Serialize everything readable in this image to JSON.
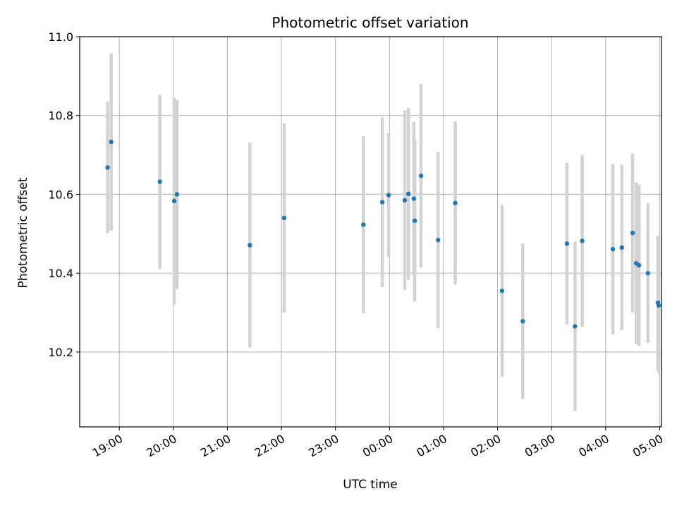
{
  "chart_data": {
    "type": "scatter",
    "title": "Photometric offset variation",
    "xlabel": "UTC time",
    "ylabel": "Photometric offset",
    "x_type": "time",
    "xlim": [
      "18:16",
      "05:02"
    ],
    "ylim": [
      10.01,
      11.0
    ],
    "grid": true,
    "xticks": [
      "19:00",
      "20:00",
      "21:00",
      "22:00",
      "23:00",
      "00:00",
      "01:00",
      "02:00",
      "03:00",
      "04:00",
      "05:00"
    ],
    "yticks": [
      10.2,
      10.4,
      10.6,
      10.8,
      11.0
    ],
    "ytick_labels": [
      "10.2",
      "10.4",
      "10.6",
      "10.8",
      "11.0"
    ],
    "marker_color": "#1f77b4",
    "errorbar_color": "#d3d3d3",
    "points": [
      {
        "x": "18:47",
        "y": 10.668,
        "err": 0.167
      },
      {
        "x": "18:51",
        "y": 10.733,
        "err": 0.225
      },
      {
        "x": "19:45",
        "y": 10.632,
        "err": 0.221
      },
      {
        "x": "20:01",
        "y": 10.583,
        "err": 0.262
      },
      {
        "x": "20:04",
        "y": 10.6,
        "err": 0.24
      },
      {
        "x": "21:25",
        "y": 10.471,
        "err": 0.26
      },
      {
        "x": "22:03",
        "y": 10.54,
        "err": 0.24
      },
      {
        "x": "23:31",
        "y": 10.523,
        "err": 0.225
      },
      {
        "x": "23:52",
        "y": 10.58,
        "err": 0.215
      },
      {
        "x": "23:59",
        "y": 10.598,
        "err": 0.157
      },
      {
        "x": "00:17",
        "y": 10.585,
        "err": 0.228
      },
      {
        "x": "00:21",
        "y": 10.601,
        "err": 0.218
      },
      {
        "x": "00:27",
        "y": 10.589,
        "err": 0.195
      },
      {
        "x": "00:28",
        "y": 10.533,
        "err": 0.205
      },
      {
        "x": "00:35",
        "y": 10.647,
        "err": 0.233
      },
      {
        "x": "00:54",
        "y": 10.484,
        "err": 0.223
      },
      {
        "x": "01:13",
        "y": 10.578,
        "err": 0.207
      },
      {
        "x": "02:05",
        "y": 10.355,
        "err": 0.218
      },
      {
        "x": "02:28",
        "y": 10.278,
        "err": 0.197
      },
      {
        "x": "03:17",
        "y": 10.475,
        "err": 0.205
      },
      {
        "x": "03:26",
        "y": 10.265,
        "err": 0.215
      },
      {
        "x": "03:34",
        "y": 10.482,
        "err": 0.218
      },
      {
        "x": "04:08",
        "y": 10.461,
        "err": 0.217
      },
      {
        "x": "04:18",
        "y": 10.465,
        "err": 0.21
      },
      {
        "x": "04:30",
        "y": 10.502,
        "err": 0.202
      },
      {
        "x": "04:34",
        "y": 10.425,
        "err": 0.205
      },
      {
        "x": "04:37",
        "y": 10.42,
        "err": 0.205
      },
      {
        "x": "04:47",
        "y": 10.4,
        "err": 0.177
      },
      {
        "x": "04:58",
        "y": 10.325,
        "err": 0.17
      },
      {
        "x": "04:59",
        "y": 10.318,
        "err": 0.172
      }
    ]
  }
}
